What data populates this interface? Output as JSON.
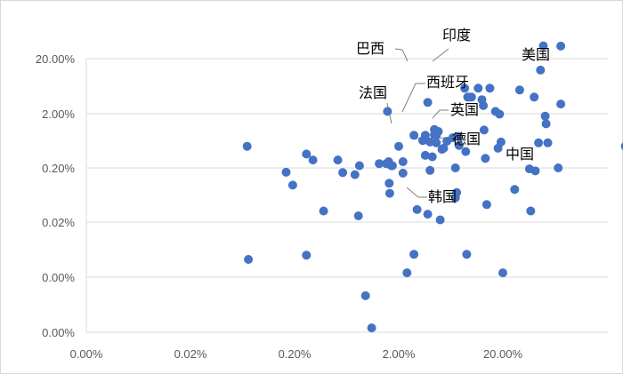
{
  "chart_data": {
    "type": "scatter",
    "title": "",
    "xlabel": "",
    "ylabel": "",
    "x_ticks": [
      "0.00%",
      "0.02%",
      "0.20%",
      "2.00%",
      "20.00%"
    ],
    "y_ticks": [
      "20.00%",
      "2.00%",
      "0.20%",
      "0.02%",
      "0.00%",
      "0.00%"
    ],
    "grid": "horizontal",
    "marker_color": "#4472C4",
    "leader_color": "#7f7f7f",
    "labeled_points": [
      {
        "label": "美国",
        "x": 21.5,
        "y": 21.0
      },
      {
        "label": "印度",
        "x": 3.6,
        "y": 17.0
      },
      {
        "label": "巴西",
        "x": 2.45,
        "y": 17.2
      },
      {
        "label": "西班牙",
        "x": 2.3,
        "y": 6.2
      },
      {
        "label": "法国",
        "x": 2.0,
        "y": 2.0
      },
      {
        "label": "英国",
        "x": 3.6,
        "y": 1.5
      },
      {
        "label": "德国",
        "x": 2.6,
        "y": 0.65
      },
      {
        "label": "中国",
        "x": 15.0,
        "y": 0.25
      },
      {
        "label": "韩国",
        "x": 2.05,
        "y": 0.088
      }
    ],
    "points": [
      {
        "x": 0.0035,
        "y": 0.25
      },
      {
        "x": 0.0036,
        "y": 0.0021
      },
      {
        "x": 0.0083,
        "y": 0.083
      },
      {
        "x": 0.0096,
        "y": 0.048
      },
      {
        "x": 0.013,
        "y": 0.18
      },
      {
        "x": 0.013,
        "y": 0.0025
      },
      {
        "x": 0.015,
        "y": 0.14
      },
      {
        "x": 0.019,
        "y": 0.016
      },
      {
        "x": 0.026,
        "y": 0.14
      },
      {
        "x": 0.029,
        "y": 0.082
      },
      {
        "x": 0.038,
        "y": 0.075
      },
      {
        "x": 0.041,
        "y": 0.013
      },
      {
        "x": 0.042,
        "y": 0.11
      },
      {
        "x": 0.048,
        "y": 0.00046
      },
      {
        "x": 0.055,
        "y": 0.00012
      },
      {
        "x": 0.065,
        "y": 0.12
      },
      {
        "x": 0.076,
        "y": 0.12
      },
      {
        "x": 0.078,
        "y": 1.1
      },
      {
        "x": 0.08,
        "y": 0.13
      },
      {
        "x": 0.081,
        "y": 0.052
      },
      {
        "x": 0.082,
        "y": 0.034
      },
      {
        "x": 0.085,
        "y": 0.11
      },
      {
        "x": 0.087,
        "y": 0.11
      },
      {
        "x": 0.1,
        "y": 0.25
      },
      {
        "x": 0.11,
        "y": 0.13
      },
      {
        "x": 0.11,
        "y": 0.08
      },
      {
        "x": 0.12,
        "y": 0.0012
      },
      {
        "x": 0.14,
        "y": 0.4
      },
      {
        "x": 0.14,
        "y": 0.0026
      },
      {
        "x": 0.15,
        "y": 0.017
      },
      {
        "x": 0.17,
        "y": 0.32
      },
      {
        "x": 0.18,
        "y": 0.4
      },
      {
        "x": 0.18,
        "y": 0.17
      },
      {
        "x": 0.19,
        "y": 1.6
      },
      {
        "x": 0.19,
        "y": 0.014
      },
      {
        "x": 0.2,
        "y": 0.3
      },
      {
        "x": 0.2,
        "y": 0.09
      },
      {
        "x": 0.21,
        "y": 0.16
      },
      {
        "x": 0.22,
        "y": 0.41
      },
      {
        "x": 0.22,
        "y": 0.51
      },
      {
        "x": 0.23,
        "y": 0.29
      },
      {
        "x": 0.23,
        "y": 0.4
      },
      {
        "x": 0.24,
        "y": 0.47
      },
      {
        "x": 0.25,
        "y": 0.011
      },
      {
        "x": 0.26,
        "y": 0.22
      },
      {
        "x": 0.27,
        "y": 0.23
      },
      {
        "x": 0.29,
        "y": 0.31
      },
      {
        "x": 0.33,
        "y": 0.36
      },
      {
        "x": 0.35,
        "y": 0.028
      },
      {
        "x": 0.35,
        "y": 0.1
      },
      {
        "x": 0.36,
        "y": 0.035
      },
      {
        "x": 0.37,
        "y": 0.38
      },
      {
        "x": 0.38,
        "y": 0.26
      },
      {
        "x": 0.43,
        "y": 2.9
      },
      {
        "x": 0.44,
        "y": 0.2
      },
      {
        "x": 0.45,
        "y": 0.0026
      },
      {
        "x": 0.46,
        "y": 2.0
      },
      {
        "x": 0.47,
        "y": 2.0
      },
      {
        "x": 0.5,
        "y": 2.0
      },
      {
        "x": 0.58,
        "y": 2.9
      },
      {
        "x": 0.63,
        "y": 1.8
      },
      {
        "x": 0.65,
        "y": 1.4
      },
      {
        "x": 0.66,
        "y": 0.5
      },
      {
        "x": 0.68,
        "y": 0.15
      },
      {
        "x": 0.7,
        "y": 0.021
      },
      {
        "x": 0.75,
        "y": 2.9
      },
      {
        "x": 0.85,
        "y": 1.1
      },
      {
        "x": 0.9,
        "y": 0.23
      },
      {
        "x": 0.93,
        "y": 0.98
      },
      {
        "x": 0.96,
        "y": 0.3
      },
      {
        "x": 1.0,
        "y": 0.0012
      },
      {
        "x": 1.3,
        "y": 0.04
      },
      {
        "x": 1.45,
        "y": 2.7
      },
      {
        "x": 1.8,
        "y": 0.096
      },
      {
        "x": 1.85,
        "y": 0.016
      },
      {
        "x": 2.2,
        "y": 0.29
      },
      {
        "x": 2.55,
        "y": 0.9
      },
      {
        "x": 2.7,
        "y": 0.29
      },
      {
        "x": 3.4,
        "y": 0.1
      }
    ]
  }
}
